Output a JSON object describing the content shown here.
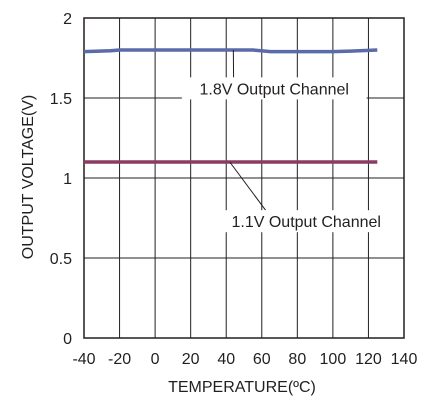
{
  "chart_data": {
    "type": "line",
    "title": "",
    "xlabel": "TEMPERATURE(ºC)",
    "ylabel": "OUTPUT VOLTAGE(V)",
    "xlim": [
      -40,
      140
    ],
    "ylim": [
      0,
      2
    ],
    "x_ticks": [
      -40,
      -20,
      0,
      20,
      40,
      60,
      80,
      100,
      120,
      140
    ],
    "x_tick_labels": [
      "-40",
      "-20",
      "0",
      "20",
      "40",
      "60",
      "80",
      "100",
      "120",
      "140"
    ],
    "y_ticks": [
      0,
      0.5,
      1,
      1.5,
      2
    ],
    "y_tick_labels": [
      "0",
      "0.5",
      "1",
      "1.5",
      "2"
    ],
    "grid": true,
    "series": [
      {
        "name": "1.8V Output Channel",
        "color": "#5b6aa8",
        "x": [
          -40,
          -25,
          -20,
          0,
          20,
          40,
          55,
          65,
          80,
          100,
          110,
          125
        ],
        "y": [
          1.79,
          1.795,
          1.8,
          1.8,
          1.8,
          1.8,
          1.8,
          1.79,
          1.79,
          1.79,
          1.793,
          1.8
        ]
      },
      {
        "name": "1.1V Output Channel",
        "color": "#8b3a62",
        "x": [
          -40,
          -20,
          0,
          20,
          40,
          60,
          80,
          100,
          125
        ],
        "y": [
          1.1,
          1.1,
          1.1,
          1.1,
          1.1,
          1.1,
          1.1,
          1.1,
          1.1
        ]
      }
    ],
    "annotations": [
      {
        "text": "1.8V Output Channel",
        "series": 0,
        "target_x": 44,
        "target_y": 1.8,
        "label_x": 67,
        "label_y": 1.56
      },
      {
        "text": "1.1V Output Channel",
        "series": 1,
        "target_x": 42,
        "target_y": 1.1,
        "label_x": 85,
        "label_y": 0.73
      }
    ]
  }
}
